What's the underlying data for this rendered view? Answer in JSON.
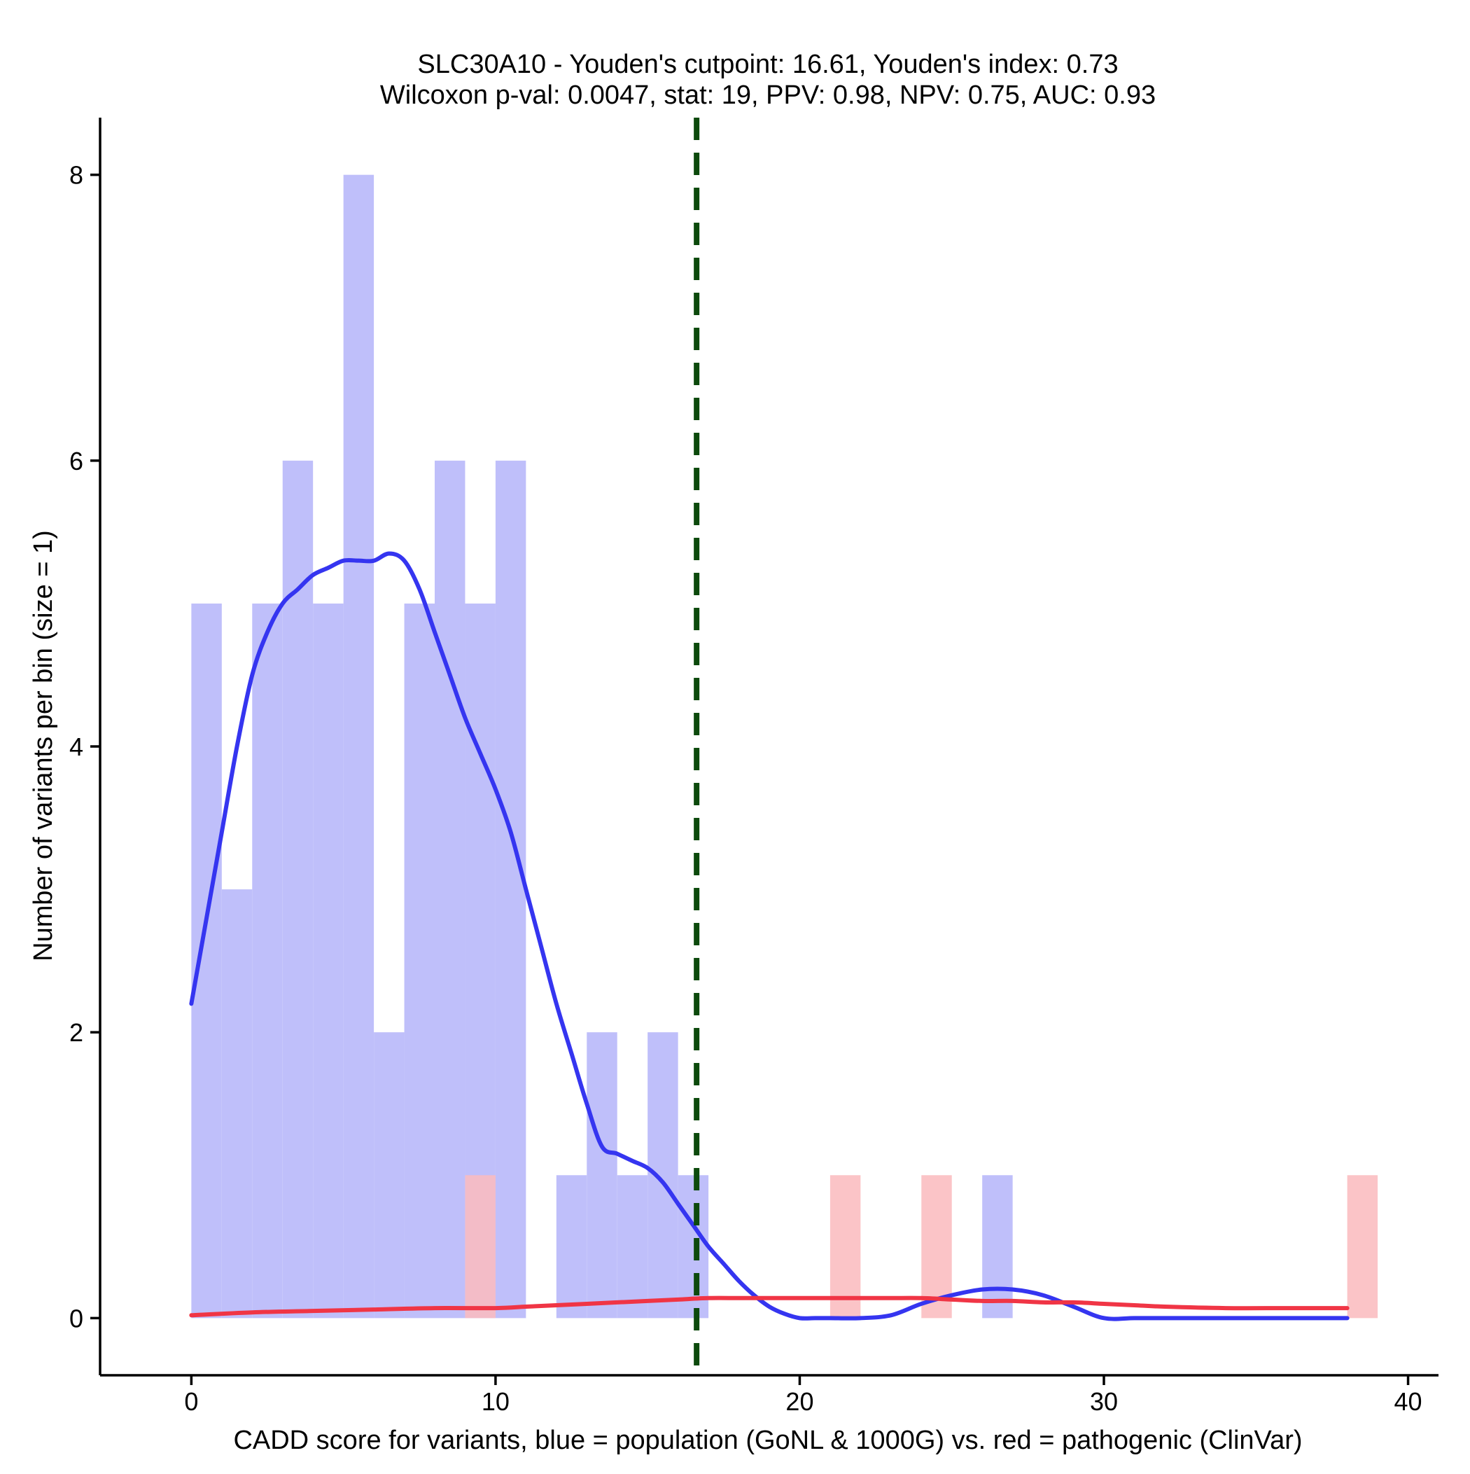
{
  "chart_data": {
    "type": "bar",
    "title": "SLC30A10 - Youden's cutpoint: 16.61, Youden's index: 0.73",
    "subtitle": "Wilcoxon p-val: 0.0047, stat: 19, PPV: 0.98, NPV: 0.75, AUC: 0.93",
    "xlabel": "CADD score for variants, blue = population (GoNL & 1000G) vs. red = pathogenic (ClinVar)",
    "ylabel": "Number of variants per bin (size = 1)",
    "xlim": [
      -3,
      41
    ],
    "ylim": [
      -0.4,
      8.4
    ],
    "xticks": [
      0,
      10,
      20,
      30,
      40
    ],
    "yticks": [
      0,
      2,
      4,
      6,
      8
    ],
    "bin_width": 1,
    "cutpoint": 16.61,
    "colors": {
      "population_bar": "#bfbffa",
      "pathogenic_bar": "#fbbcbf",
      "population_line": "#3535f0",
      "pathogenic_line": "#f03545",
      "cutpoint_line": "#0d4a0d"
    },
    "series": [
      {
        "name": "population (GoNL & 1000G)",
        "kind": "histogram",
        "bins": [
          {
            "start": 0,
            "count": 5
          },
          {
            "start": 1,
            "count": 3
          },
          {
            "start": 2,
            "count": 5
          },
          {
            "start": 3,
            "count": 6
          },
          {
            "start": 4,
            "count": 5
          },
          {
            "start": 5,
            "count": 8
          },
          {
            "start": 6,
            "count": 2
          },
          {
            "start": 7,
            "count": 5
          },
          {
            "start": 8,
            "count": 6
          },
          {
            "start": 9,
            "count": 5
          },
          {
            "start": 10,
            "count": 6
          },
          {
            "start": 12,
            "count": 1
          },
          {
            "start": 13,
            "count": 2
          },
          {
            "start": 14,
            "count": 1
          },
          {
            "start": 15,
            "count": 2
          },
          {
            "start": 16,
            "count": 1
          },
          {
            "start": 26,
            "count": 1
          }
        ]
      },
      {
        "name": "pathogenic (ClinVar)",
        "kind": "histogram",
        "bins": [
          {
            "start": 9,
            "count": 1
          },
          {
            "start": 21,
            "count": 1
          },
          {
            "start": 24,
            "count": 1
          },
          {
            "start": 38,
            "count": 1
          }
        ]
      },
      {
        "name": "population density",
        "kind": "line",
        "x": [
          0,
          0.5,
          1,
          1.5,
          2,
          2.5,
          3,
          3.5,
          4,
          4.5,
          5,
          5.5,
          6,
          6.5,
          7,
          7.5,
          8,
          8.5,
          9,
          9.5,
          10,
          10.5,
          11,
          11.5,
          12,
          12.5,
          13,
          13.5,
          14,
          14.5,
          15,
          15.5,
          16,
          16.5,
          17,
          17.5,
          18,
          18.5,
          19,
          19.5,
          20,
          20.5,
          21,
          22,
          23,
          24,
          25,
          26,
          27,
          28,
          29,
          30,
          31,
          32,
          34,
          36,
          38
        ],
        "y": [
          2.2,
          2.8,
          3.4,
          4.0,
          4.5,
          4.8,
          5.0,
          5.1,
          5.2,
          5.25,
          5.3,
          5.3,
          5.3,
          5.35,
          5.3,
          5.1,
          4.8,
          4.5,
          4.2,
          3.95,
          3.7,
          3.4,
          3.0,
          2.6,
          2.2,
          1.85,
          1.5,
          1.2,
          1.15,
          1.1,
          1.05,
          0.95,
          0.8,
          0.65,
          0.5,
          0.38,
          0.26,
          0.16,
          0.08,
          0.03,
          0.0,
          0.0,
          0.0,
          0.0,
          0.02,
          0.1,
          0.16,
          0.2,
          0.2,
          0.16,
          0.08,
          0.0,
          0.0,
          0.0,
          0.0,
          0.0,
          0.0
        ]
      },
      {
        "name": "pathogenic density",
        "kind": "line",
        "x": [
          0,
          2,
          4,
          6,
          8,
          10,
          11,
          12,
          13,
          14,
          15,
          16,
          17,
          18,
          19,
          20,
          21,
          22,
          23,
          24,
          25,
          26,
          27,
          28,
          29,
          30,
          31,
          32,
          34,
          36,
          38
        ],
        "y": [
          0.02,
          0.04,
          0.05,
          0.06,
          0.07,
          0.07,
          0.08,
          0.09,
          0.1,
          0.11,
          0.12,
          0.13,
          0.14,
          0.14,
          0.14,
          0.14,
          0.14,
          0.14,
          0.14,
          0.14,
          0.13,
          0.12,
          0.12,
          0.11,
          0.11,
          0.1,
          0.09,
          0.08,
          0.07,
          0.07,
          0.07
        ]
      }
    ]
  }
}
